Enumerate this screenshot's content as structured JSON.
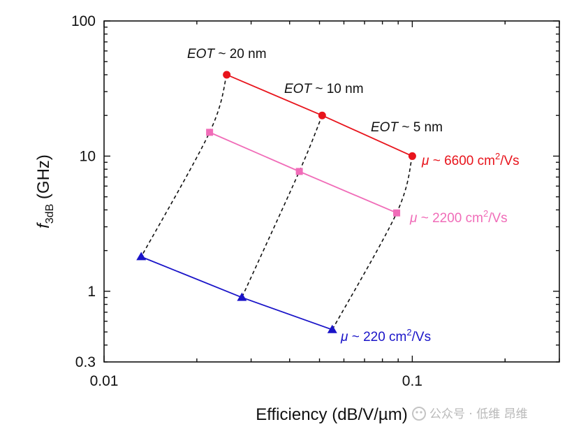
{
  "chart_data": {
    "type": "line",
    "x_scale": "log",
    "y_scale": "log",
    "xlim": [
      0.01,
      0.3
    ],
    "ylim": [
      0.3,
      100
    ],
    "xlabel": "Efficiency (dB/V/µm)",
    "ylabel_main": "f",
    "ylabel_sub": "3dB",
    "ylabel_unit": " (GHz)",
    "x_ticks": [
      {
        "value": 0.01,
        "label": "0.01"
      },
      {
        "value": 0.1,
        "label": "0.1"
      }
    ],
    "y_ticks": [
      {
        "value": 0.3,
        "label": "0.3"
      },
      {
        "value": 1,
        "label": "1"
      },
      {
        "value": 10,
        "label": "10"
      },
      {
        "value": 100,
        "label": "100"
      }
    ],
    "series": [
      {
        "name": "mu-6600",
        "label_mu": "μ",
        "label_text": " ~ 6600 cm",
        "label_sup": "2",
        "label_tail": "/Vs",
        "color": "#e8141c",
        "marker": "circle",
        "x": [
          0.025,
          0.051,
          0.1
        ],
        "y": [
          40,
          20,
          10
        ]
      },
      {
        "name": "mu-2200",
        "label_mu": "μ",
        "label_text": " ~ 2200 cm",
        "label_sup": "2",
        "label_tail": "/Vs",
        "color": "#f06cb8",
        "marker": "square",
        "x": [
          0.022,
          0.043,
          0.089
        ],
        "y": [
          15,
          7.7,
          3.8
        ]
      },
      {
        "name": "mu-220",
        "label_mu": "μ",
        "label_text": " ~ 220 cm",
        "label_sup": "2",
        "label_tail": "/Vs",
        "color": "#1a14c8",
        "marker": "triangle",
        "x": [
          0.0132,
          0.028,
          0.055
        ],
        "y": [
          1.8,
          0.9,
          0.52
        ]
      }
    ],
    "dashed_links": [
      {
        "name": "eot-20-link",
        "x": [
          0.025,
          0.022,
          0.0132
        ],
        "y": [
          40,
          15,
          1.8
        ]
      },
      {
        "name": "eot-10-link",
        "x": [
          0.051,
          0.043,
          0.028
        ],
        "y": [
          20,
          7.7,
          0.9
        ]
      },
      {
        "name": "eot-5-link",
        "x": [
          0.1,
          0.089,
          0.055
        ],
        "y": [
          10,
          3.8,
          0.52
        ]
      }
    ],
    "eot_annotations": [
      {
        "name": "eot-20nm",
        "italic": "EOT",
        "text": " ~ 20 nm"
      },
      {
        "name": "eot-10nm",
        "italic": "EOT",
        "text": " ~ 10 nm"
      },
      {
        "name": "eot-5nm",
        "italic": "EOT",
        "text": " ~ 5 nm"
      }
    ]
  },
  "watermark": "公众号 · 低维 昂维"
}
